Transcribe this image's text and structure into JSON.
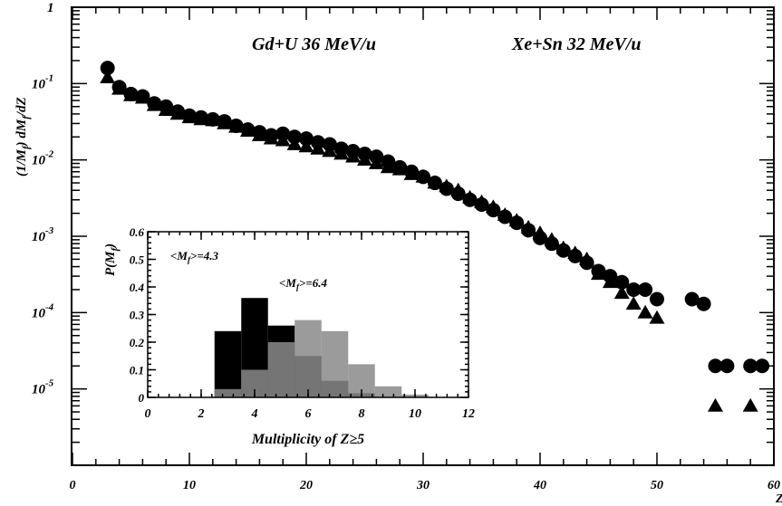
{
  "chart_data": [
    {
      "type": "scatter",
      "title": "",
      "annotations": [
        "Gd+U  36 MeV/u",
        "Xe+Sn 32 MeV/u"
      ],
      "xlabel": "Z",
      "ylabel": "(1/M",
      "ylabel_sub": "f",
      "ylabel_rest": ") dM",
      "ylabel_sub2": "f",
      "ylabel_end": "/dZ",
      "xlim": [
        0,
        60
      ],
      "ylim_log10": [
        -6,
        0
      ],
      "y_scale": "log",
      "x_ticks": [
        "0",
        "10",
        "20",
        "30",
        "40",
        "50",
        "60"
      ],
      "y_ticks": [
        {
          "base": "1",
          "exp": ""
        },
        {
          "base": "10",
          "exp": "-1"
        },
        {
          "base": "10",
          "exp": "-2"
        },
        {
          "base": "10",
          "exp": "-3"
        },
        {
          "base": "10",
          "exp": "-4"
        },
        {
          "base": "10",
          "exp": "-5"
        }
      ],
      "series": [
        {
          "marker": "circle",
          "x": [
            3,
            4,
            5,
            6,
            7,
            8,
            9,
            10,
            11,
            12,
            13,
            14,
            15,
            16,
            17,
            18,
            19,
            20,
            21,
            22,
            23,
            24,
            25,
            26,
            27,
            28,
            29,
            30,
            31,
            32,
            33,
            34,
            35,
            36,
            37,
            38,
            39,
            40,
            41,
            42,
            43,
            44,
            45,
            46,
            47,
            48,
            49,
            50,
            53,
            54,
            55,
            56,
            58,
            59
          ],
          "y": [
            0.16,
            0.09,
            0.073,
            0.068,
            0.055,
            0.05,
            0.043,
            0.038,
            0.036,
            0.034,
            0.032,
            0.028,
            0.025,
            0.023,
            0.021,
            0.022,
            0.02,
            0.019,
            0.017,
            0.016,
            0.014,
            0.013,
            0.012,
            0.011,
            0.0095,
            0.008,
            0.007,
            0.006,
            0.005,
            0.0042,
            0.0036,
            0.003,
            0.0026,
            0.0022,
            0.0018,
            0.0015,
            0.0012,
            0.00095,
            0.0008,
            0.00065,
            0.00055,
            0.00045,
            0.00035,
            0.0003,
            0.00025,
            0.0002,
            0.0002,
            0.00015,
            0.00015,
            0.00013,
            2e-05,
            2e-05,
            2e-05,
            2e-05
          ]
        },
        {
          "marker": "triangle",
          "x": [
            3,
            4,
            5,
            6,
            7,
            8,
            9,
            10,
            11,
            12,
            13,
            14,
            15,
            16,
            17,
            18,
            19,
            20,
            21,
            22,
            23,
            24,
            25,
            26,
            27,
            28,
            29,
            30,
            31,
            32,
            33,
            34,
            35,
            36,
            37,
            38,
            39,
            40,
            41,
            42,
            43,
            44,
            45,
            46,
            47,
            48,
            49,
            50,
            55,
            58
          ],
          "y": [
            0.12,
            0.085,
            0.07,
            0.065,
            0.052,
            0.045,
            0.04,
            0.036,
            0.034,
            0.033,
            0.03,
            0.027,
            0.024,
            0.021,
            0.019,
            0.018,
            0.016,
            0.015,
            0.014,
            0.013,
            0.012,
            0.011,
            0.01,
            0.009,
            0.008,
            0.0075,
            0.0065,
            0.006,
            0.005,
            0.0045,
            0.004,
            0.0032,
            0.0028,
            0.0024,
            0.0019,
            0.0016,
            0.0013,
            0.0011,
            0.0009,
            0.0007,
            0.0006,
            0.0005,
            0.00032,
            0.00025,
            0.00018,
            0.00013,
            0.0001,
            8.5e-05,
            6e-06,
            6e-06
          ]
        }
      ]
    },
    {
      "type": "bar",
      "title": "",
      "annotations": [
        {
          "pre": "<M",
          "sub": "f",
          "post": ">=4.3"
        },
        {
          "pre": "<M",
          "sub": "f",
          "post": ">=6.4"
        }
      ],
      "xlabel": "Multiplicity of Z≥5",
      "ylabel": "P(M",
      "ylabel_sub": "f",
      "ylabel_end": ")",
      "xlim": [
        0,
        12
      ],
      "ylim": [
        0,
        0.6
      ],
      "x_ticks": [
        "0",
        "2",
        "4",
        "6",
        "8",
        "10",
        "12"
      ],
      "y_ticks": [
        "0",
        "0.1",
        "0.2",
        "0.3",
        "0.4",
        "0.5",
        "0.6"
      ],
      "series": [
        {
          "fill": "#000000",
          "bin_left": [
            2.5,
            3.5,
            4.5,
            5.5,
            6.5,
            7.5,
            8.5,
            9.5
          ],
          "values": [
            0.24,
            0.36,
            0.26,
            0.15,
            0.06,
            0.015,
            0,
            0
          ]
        },
        {
          "fill": "#8a8a8a",
          "bin_left": [
            2.5,
            3.5,
            4.5,
            5.5,
            6.5,
            7.5,
            8.5,
            9.5
          ],
          "values": [
            0.03,
            0.1,
            0.2,
            0.28,
            0.24,
            0.12,
            0.04,
            0.01
          ]
        }
      ]
    }
  ]
}
